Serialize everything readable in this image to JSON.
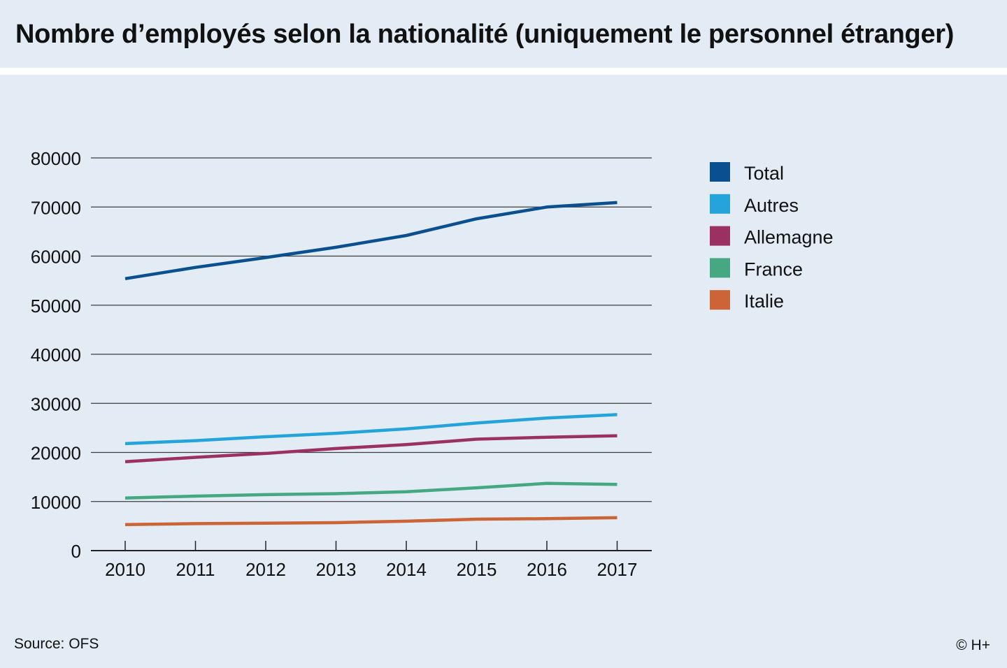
{
  "header": {
    "title": "Nombre d’employés selon la nationalité (uniquement le personnel étranger)"
  },
  "footer": {
    "source": "Source: OFS",
    "copyright": "© H+"
  },
  "chart_data": {
    "type": "line",
    "title": "Nombre d’employés selon la nationalité (uniquement le personnel étranger)",
    "xlabel": "",
    "ylabel": "",
    "ylim": [
      0,
      80000
    ],
    "yticks": [
      0,
      10000,
      20000,
      30000,
      40000,
      50000,
      60000,
      70000,
      80000
    ],
    "grid": true,
    "legend_position": "right",
    "categories": [
      "2010",
      "2011",
      "2012",
      "2013",
      "2014",
      "2015",
      "2016",
      "2017"
    ],
    "series": [
      {
        "name": "Total",
        "color": "#0a4f8f",
        "values": [
          55400,
          57700,
          59700,
          61800,
          64200,
          67600,
          70000,
          70900
        ]
      },
      {
        "name": "Autres",
        "color": "#25a4dc",
        "values": [
          21800,
          22400,
          23200,
          23900,
          24800,
          26000,
          27000,
          27700
        ]
      },
      {
        "name": "Allemagne",
        "color": "#9b3163",
        "values": [
          18100,
          19000,
          19800,
          20800,
          21600,
          22700,
          23100,
          23400
        ]
      },
      {
        "name": "France",
        "color": "#46a883",
        "values": [
          10700,
          11100,
          11400,
          11600,
          12000,
          12800,
          13700,
          13500
        ]
      },
      {
        "name": "Italie",
        "color": "#cc6438",
        "values": [
          5300,
          5500,
          5600,
          5700,
          6000,
          6400,
          6500,
          6700
        ]
      }
    ]
  }
}
